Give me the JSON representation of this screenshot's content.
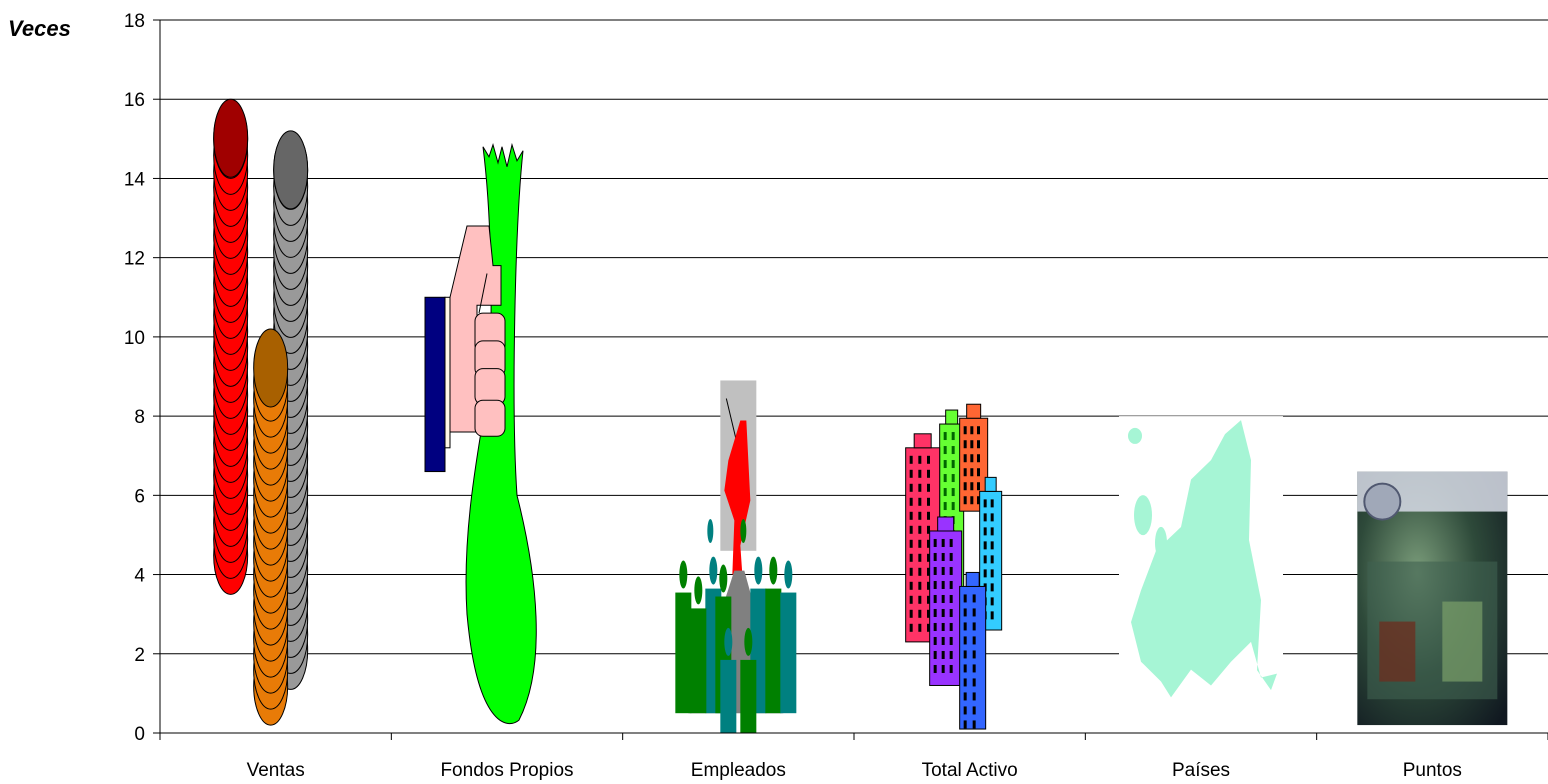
{
  "chart_data": {
    "type": "bar",
    "title": "",
    "ylabel": "Veces",
    "xlabel": "",
    "ylim": [
      0,
      18
    ],
    "yticks": [
      0,
      2,
      4,
      6,
      8,
      10,
      12,
      14,
      16,
      18
    ],
    "grid": true,
    "categories": [
      "Ventas",
      "Fondos Propios",
      "Empleados",
      "Total Activo",
      "Países",
      "Puntos"
    ],
    "values": [
      16,
      14.8,
      8.9,
      8.3,
      7.9,
      6.6
    ],
    "pictograms": [
      "coins-stack-icon",
      "hand-holding-leek-icon",
      "people-group-icon",
      "office-buildings-icon",
      "europe-map-icon",
      "atm-photo-icon"
    ],
    "colors": {
      "coin_red": "#ff0000",
      "coin_grey": "#999999",
      "coin_orange": "#e87b07",
      "leek_green": "#00ff00",
      "hand_pink": "#ffc0c0",
      "sleeve_navy": "#000080",
      "map_mint": "#a6f5d5",
      "people_teal": "#008080",
      "people_green": "#008000"
    }
  }
}
